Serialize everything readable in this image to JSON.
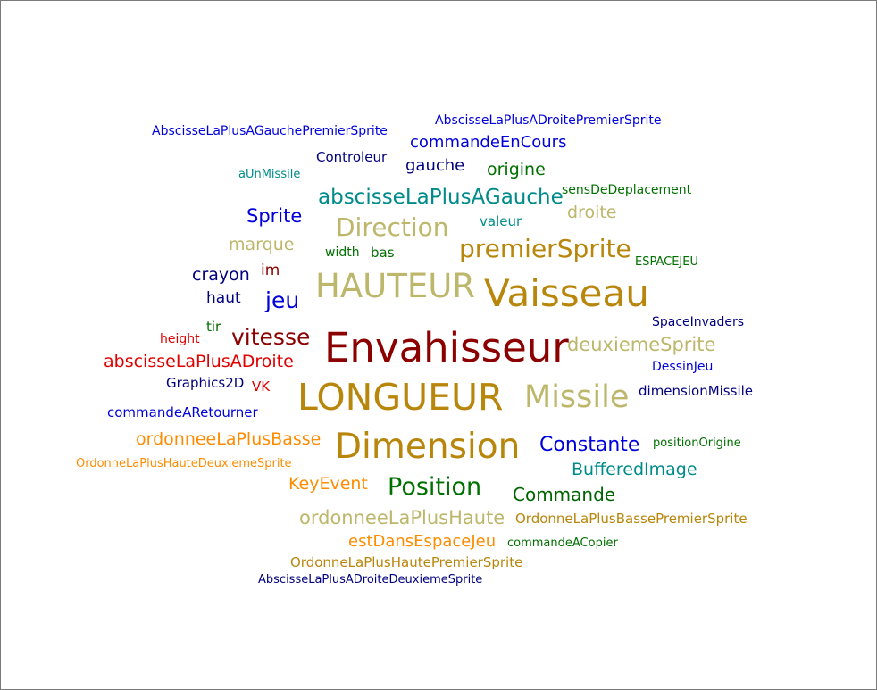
{
  "colors": {
    "blue": "#0000dd",
    "navy": "#00007f",
    "teal": "#008b8b",
    "green": "#007000",
    "darkgreen": "#006400",
    "maroon": "#8b0000",
    "red": "#e00000",
    "khaki": "#bdb76b",
    "gold": "#b8860b",
    "orange": "#ff8c00"
  },
  "words": [
    {
      "text": "AbscisseLaPlusAGauchePremierSprite",
      "color": "blue"
    },
    {
      "text": "AbscisseLaPlusADroitePremierSprite",
      "color": "blue"
    },
    {
      "text": "commandeEnCours",
      "color": "blue"
    },
    {
      "text": "Controleur",
      "color": "navy"
    },
    {
      "text": "gauche",
      "color": "navy"
    },
    {
      "text": "origine",
      "color": "green"
    },
    {
      "text": "aUnMissile",
      "color": "teal"
    },
    {
      "text": "sensDeDeplacement",
      "color": "green"
    },
    {
      "text": "abscisseLaPlusAGauche",
      "color": "teal"
    },
    {
      "text": "Sprite",
      "color": "blue"
    },
    {
      "text": "Direction",
      "color": "khaki"
    },
    {
      "text": "valeur",
      "color": "teal"
    },
    {
      "text": "droite",
      "color": "khaki"
    },
    {
      "text": "marque",
      "color": "khaki"
    },
    {
      "text": "width",
      "color": "green"
    },
    {
      "text": "bas",
      "color": "green"
    },
    {
      "text": "premierSprite",
      "color": "gold"
    },
    {
      "text": "ESPACEJEU",
      "color": "green"
    },
    {
      "text": "crayon",
      "color": "navy"
    },
    {
      "text": "im",
      "color": "maroon"
    },
    {
      "text": "HAUTEUR",
      "color": "khaki"
    },
    {
      "text": "Vaisseau",
      "color": "gold"
    },
    {
      "text": "haut",
      "color": "navy"
    },
    {
      "text": "jeu",
      "color": "blue"
    },
    {
      "text": "SpaceInvaders",
      "color": "navy"
    },
    {
      "text": "tir",
      "color": "green"
    },
    {
      "text": "height",
      "color": "red"
    },
    {
      "text": "vitesse",
      "color": "maroon"
    },
    {
      "text": "Envahisseur",
      "color": "maroon"
    },
    {
      "text": "deuxiemeSprite",
      "color": "khaki"
    },
    {
      "text": "abscisseLaPlusADroite",
      "color": "red"
    },
    {
      "text": "DessinJeu",
      "color": "blue"
    },
    {
      "text": "Graphics2D",
      "color": "navy"
    },
    {
      "text": "VK",
      "color": "red"
    },
    {
      "text": "LONGUEUR",
      "color": "gold"
    },
    {
      "text": "Missile",
      "color": "khaki"
    },
    {
      "text": "dimensionMissile",
      "color": "navy"
    },
    {
      "text": "commandeARetourner",
      "color": "blue"
    },
    {
      "text": "ordonneeLaPlusBasse",
      "color": "orange"
    },
    {
      "text": "Dimension",
      "color": "gold"
    },
    {
      "text": "Constante",
      "color": "blue"
    },
    {
      "text": "positionOrigine",
      "color": "green"
    },
    {
      "text": "OrdonneLaPlusHauteDeuxiemeSprite",
      "color": "orange"
    },
    {
      "text": "BufferedImage",
      "color": "teal"
    },
    {
      "text": "KeyEvent",
      "color": "orange"
    },
    {
      "text": "Position",
      "color": "green"
    },
    {
      "text": "Commande",
      "color": "darkgreen"
    },
    {
      "text": "ordonneeLaPlusHaute",
      "color": "khaki"
    },
    {
      "text": "OrdonneLaPlusBassePremierSprite",
      "color": "gold"
    },
    {
      "text": "estDansEspaceJeu",
      "color": "orange"
    },
    {
      "text": "commandeACopier",
      "color": "green"
    },
    {
      "text": "OrdonneLaPlusHautePremierSprite",
      "color": "gold"
    },
    {
      "text": "AbscisseLaPlusADroiteDeuxiemeSprite",
      "color": "navy"
    }
  ]
}
